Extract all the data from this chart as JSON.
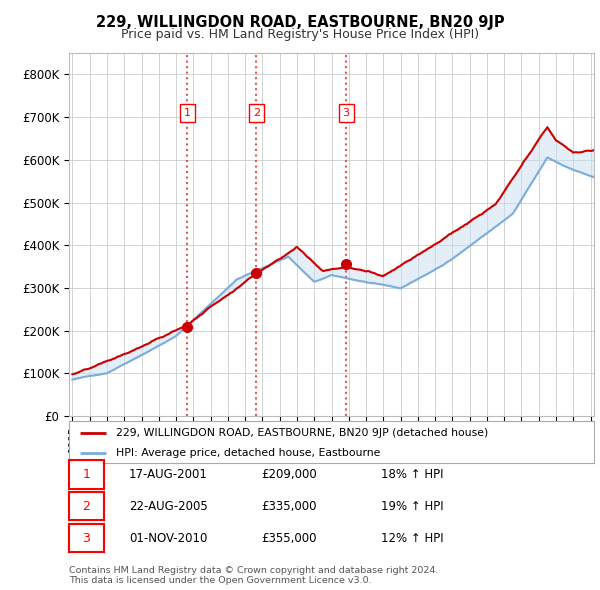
{
  "title": "229, WILLINGDON ROAD, EASTBOURNE, BN20 9JP",
  "subtitle": "Price paid vs. HM Land Registry's House Price Index (HPI)",
  "ylabel_ticks": [
    "£0",
    "£100K",
    "£200K",
    "£300K",
    "£400K",
    "£500K",
    "£600K",
    "£700K",
    "£800K"
  ],
  "ytick_vals": [
    0,
    100000,
    200000,
    300000,
    400000,
    500000,
    600000,
    700000,
    800000
  ],
  "ylim": [
    0,
    850000
  ],
  "legend_line1": "229, WILLINGDON ROAD, EASTBOURNE, BN20 9JP (detached house)",
  "legend_line2": "HPI: Average price, detached house, Eastbourne",
  "transactions": [
    {
      "num": 1,
      "date": "17-AUG-2001",
      "price": "£209,000",
      "hpi": "18% ↑ HPI",
      "year": 2001.65,
      "value": 209000
    },
    {
      "num": 2,
      "date": "22-AUG-2005",
      "price": "£335,000",
      "hpi": "19% ↑ HPI",
      "year": 2005.65,
      "value": 335000
    },
    {
      "num": 3,
      "date": "01-NOV-2010",
      "price": "£355,000",
      "hpi": "12% ↑ HPI",
      "year": 2010.85,
      "value": 355000
    }
  ],
  "footer1": "Contains HM Land Registry data © Crown copyright and database right 2024.",
  "footer2": "This data is licensed under the Open Government Licence v3.0.",
  "red_line_color": "#cc0000",
  "blue_line_color": "#7aaddb",
  "blue_fill_color": "#c8dff0",
  "vline_color": "#dd4444",
  "grid_color": "#cccccc",
  "background_color": "#ffffff",
  "plot_bg_color": "#ffffff",
  "xlim_left": 1994.8,
  "xlim_right": 2025.2
}
